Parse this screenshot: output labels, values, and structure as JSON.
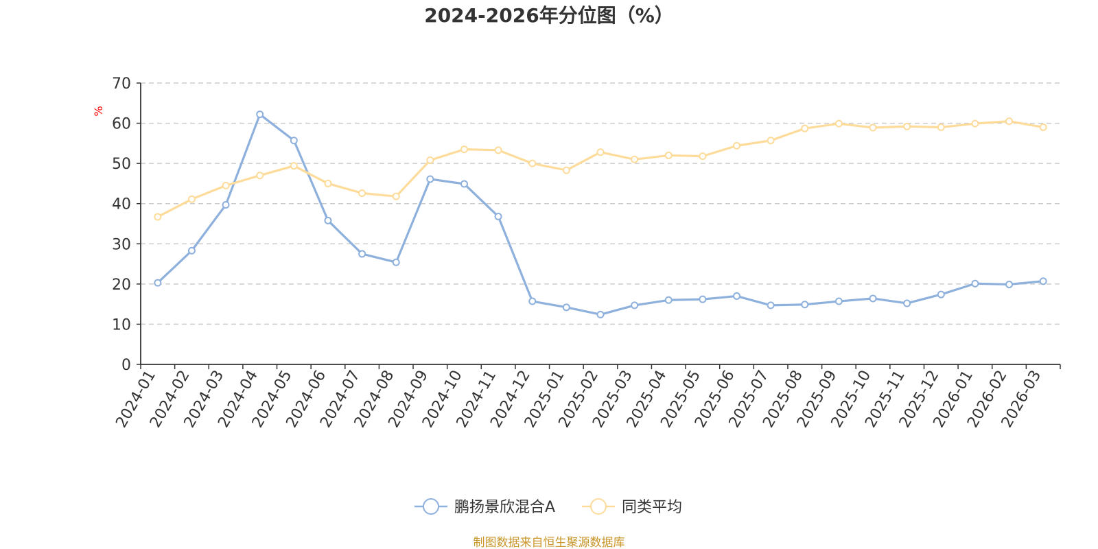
{
  "chart_data": {
    "type": "line",
    "title": "2024-2026年分位图（%）",
    "ylabel": "%",
    "xlabel": "",
    "ylim": [
      0,
      70
    ],
    "yticks": [
      0,
      10,
      20,
      30,
      40,
      50,
      60,
      70
    ],
    "grid": "horizontal dashed",
    "legend_position": "bottom",
    "categories": [
      "2024-01",
      "2024-02",
      "2024-03",
      "2024-04",
      "2024-05",
      "2024-06",
      "2024-07",
      "2024-08",
      "2024-09",
      "2024-10",
      "2024-11",
      "2024-12",
      "2025-01",
      "2025-02",
      "2025-03",
      "2025-04",
      "2025-05",
      "2025-06",
      "2025-07",
      "2025-08",
      "2025-09",
      "2025-10",
      "2025-11",
      "2025-12",
      "2026-01",
      "2026-02",
      "2026-03"
    ],
    "series": [
      {
        "name": "鹏扬景欣混合A",
        "color": "#8eb0dc",
        "values": [
          20.3,
          28.3,
          39.7,
          62.2,
          55.7,
          35.8,
          27.5,
          25.4,
          46.1,
          44.9,
          36.8,
          15.7,
          14.2,
          12.4,
          14.7,
          16.0,
          16.2,
          17.0,
          14.7,
          14.9,
          15.7,
          16.4,
          15.2,
          17.4,
          20.1,
          19.9,
          20.7
        ]
      },
      {
        "name": "同类平均",
        "color": "#fddb9a",
        "values": [
          36.7,
          41.1,
          44.5,
          47.0,
          49.4,
          45.0,
          42.6,
          41.8,
          50.8,
          53.5,
          53.3,
          50.0,
          48.3,
          52.8,
          51.0,
          52.0,
          51.8,
          54.4,
          55.7,
          58.7,
          59.9,
          58.9,
          59.2,
          59.0,
          59.9,
          60.5,
          59.0
        ]
      }
    ]
  },
  "source_note": "制图数据来自恒生聚源数据库"
}
